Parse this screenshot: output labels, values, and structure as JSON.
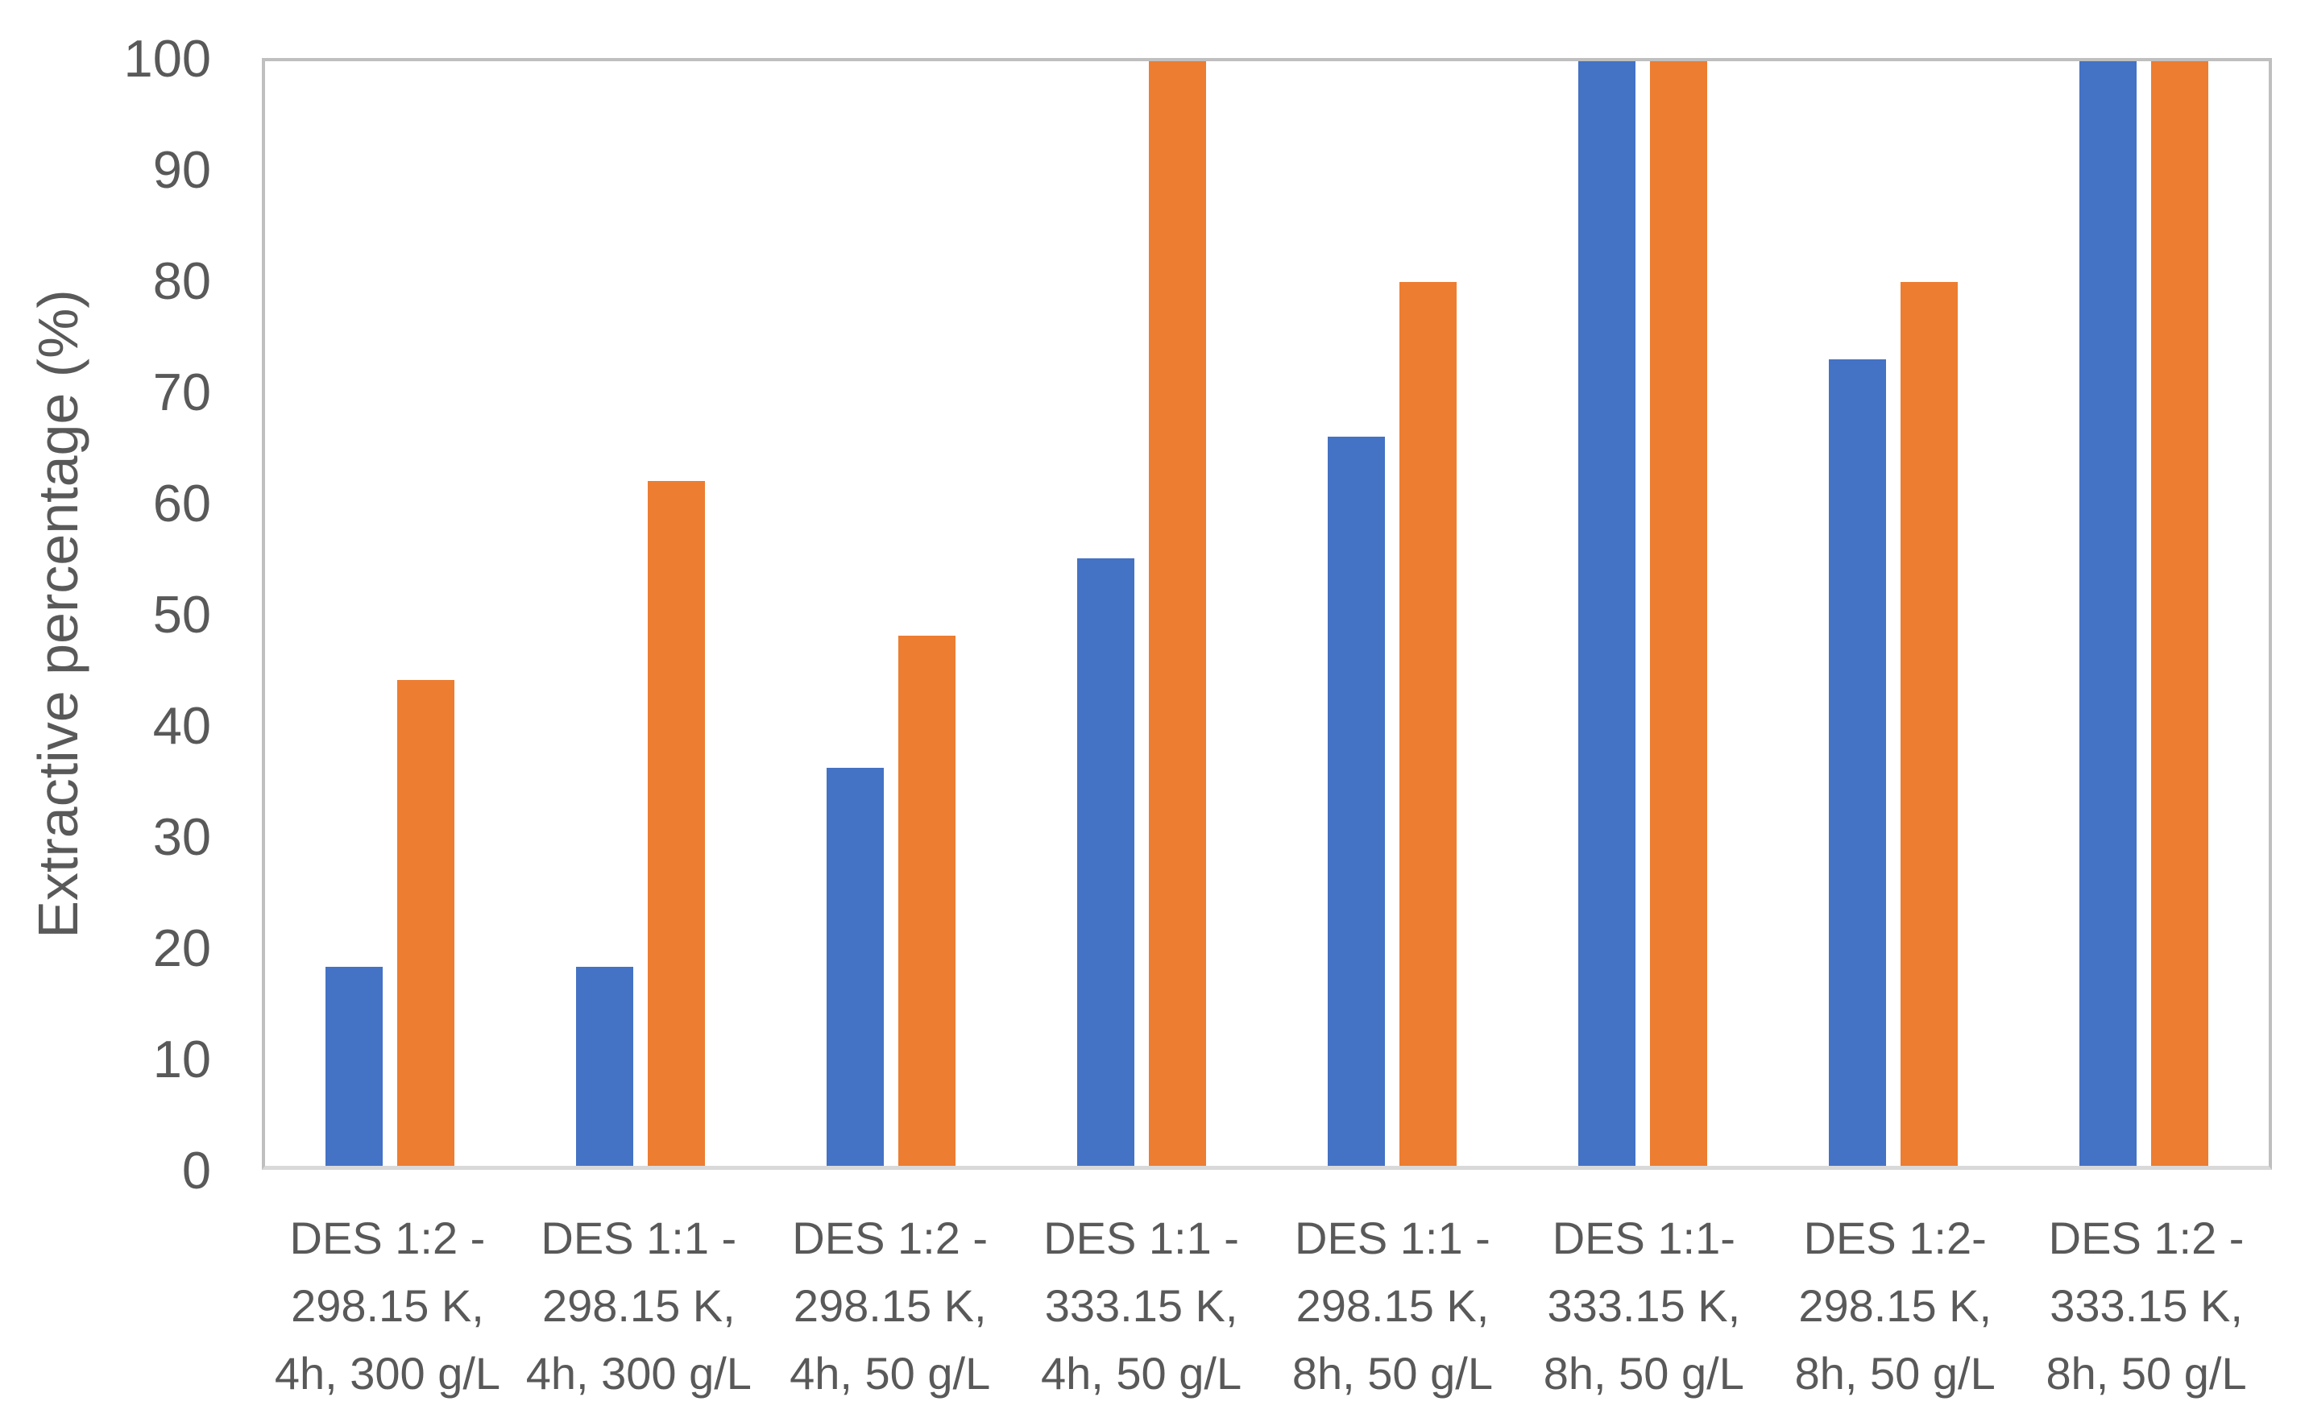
{
  "chart_data": {
    "type": "bar",
    "title": "",
    "xlabel": "",
    "ylabel": "Extractive percentage (%)",
    "ylim": [
      0,
      100
    ],
    "yticks": [
      0,
      10,
      20,
      30,
      40,
      50,
      60,
      70,
      80,
      90,
      100
    ],
    "grid": false,
    "legend": false,
    "categories": [
      [
        "DES 1:2 -",
        "298.15 K,",
        "4h, 300 g/L"
      ],
      [
        "DES 1:1 -",
        "298.15 K,",
        "4h, 300 g/L"
      ],
      [
        "DES 1:2 -",
        "298.15 K,",
        "4h, 50 g/L"
      ],
      [
        "DES 1:1 -",
        "333.15 K,",
        "4h, 50 g/L"
      ],
      [
        "DES 1:1 -",
        "298.15 K,",
        "8h, 50 g/L"
      ],
      [
        "DES 1:1-",
        "333.15 K,",
        "8h, 50 g/L"
      ],
      [
        "DES 1:2-",
        "298.15 K,",
        "8h, 50 g/L"
      ],
      [
        "DES 1:2 -",
        "333.15 K,",
        "8h, 50 g/L"
      ]
    ],
    "series": [
      {
        "name": "series-1-blue",
        "color": "#4472C4",
        "values": [
          18,
          18,
          36,
          55,
          66,
          100,
          73,
          100
        ]
      },
      {
        "name": "series-2-orange",
        "color": "#ED7D31",
        "values": [
          44,
          62,
          48,
          100,
          80,
          100,
          80,
          100
        ]
      }
    ]
  },
  "colors": {
    "background": "#FFFFFF",
    "axis_text": "#595959",
    "plot_border": "#BFBFBF",
    "axis_line": "#D9D9D9"
  }
}
